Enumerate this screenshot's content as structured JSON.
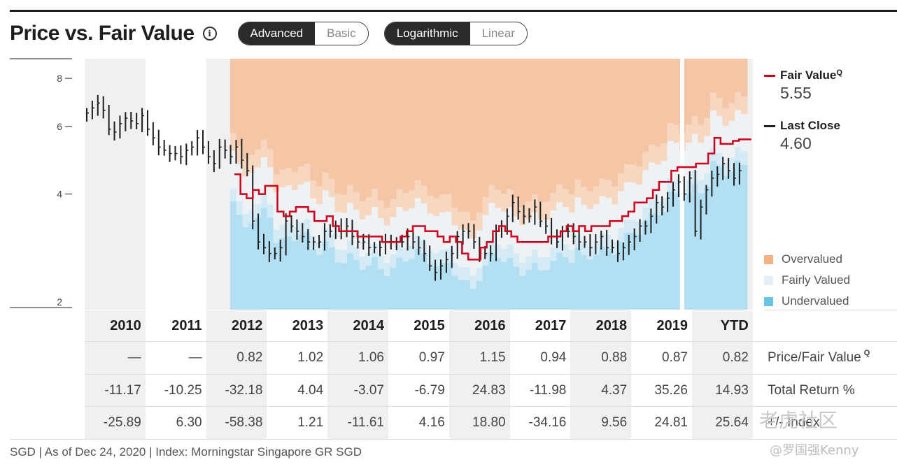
{
  "header": {
    "title": "Price vs. Fair Value",
    "info_glyph": "i",
    "view_toggle": {
      "options": [
        "Advanced",
        "Basic"
      ],
      "selected": "Advanced"
    },
    "scale_toggle": {
      "options": [
        "Logarithmic",
        "Linear"
      ],
      "selected": "Logarithmic"
    }
  },
  "legend": {
    "fair_value_label": "Fair Value",
    "fair_value_value": "5.55",
    "last_close_label": "Last Close",
    "last_close_value": "4.60",
    "q_glyph": "Q",
    "fair_value_color": "#d0021b",
    "last_close_color": "#1e1e1e"
  },
  "band_legend": [
    {
      "label": "Overvalued",
      "color": "#f5b184"
    },
    {
      "label": "Fairly Valued",
      "color": "#e3eef5"
    },
    {
      "label": "Undervalued",
      "color": "#67c4e7"
    }
  ],
  "table": {
    "years": [
      "2010",
      "2011",
      "2012",
      "2013",
      "2014",
      "2015",
      "2016",
      "2017",
      "2018",
      "2019",
      "YTD"
    ],
    "rows": [
      {
        "label": "Price/Fair Value",
        "has_q": true,
        "values": [
          "—",
          "—",
          "0.82",
          "1.02",
          "1.06",
          "0.97",
          "1.15",
          "0.94",
          "0.88",
          "0.87",
          "0.82"
        ]
      },
      {
        "label": "Total Return %",
        "has_q": false,
        "values": [
          "-11.17",
          "-10.25",
          "-32.18",
          "4.04",
          "-3.07",
          "-6.79",
          "24.83",
          "-11.98",
          "4.37",
          "35.26",
          "14.93"
        ]
      },
      {
        "label": "+/- Index",
        "has_q": false,
        "values": [
          "-25.89",
          "6.30",
          "-58.38",
          "1.21",
          "-11.61",
          "4.16",
          "18.80",
          "-34.16",
          "9.56",
          "24.81",
          "25.64"
        ]
      }
    ]
  },
  "footer": "SGD | As of Dec 24, 2020 | Index: Morningstar Singapore GR SGD",
  "watermark": {
    "line1": "老虎社区",
    "line2": "@罗国强Kenny"
  },
  "chart_data": {
    "type": "line",
    "y_scale": "log",
    "ylim": [
      2,
      9
    ],
    "y_ticks": [
      2,
      4,
      6,
      8
    ],
    "years": [
      "2010",
      "2011",
      "2012",
      "2013",
      "2014",
      "2015",
      "2016",
      "2017",
      "2018",
      "2019",
      "YTD"
    ],
    "fair_value_start_year_index": 2.4,
    "price_monthly": [
      6.5,
      6.7,
      6.9,
      6.6,
      5.9,
      5.8,
      6.1,
      6.3,
      6.2,
      6.1,
      6.4,
      5.9,
      5.6,
      5.3,
      5.2,
      5.1,
      5.1,
      5.0,
      5.2,
      5.3,
      5.6,
      5.3,
      5.0,
      4.8,
      5.3,
      5.2,
      5.0,
      5.3,
      4.9,
      4.6,
      3.4,
      3.0,
      2.9,
      2.8,
      2.8,
      2.9,
      3.4,
      3.3,
      3.2,
      3.1,
      3.0,
      3.0,
      3.0,
      3.2,
      3.2,
      3.3,
      3.2,
      3.3,
      3.1,
      3.0,
      3.0,
      2.9,
      2.9,
      2.9,
      3.0,
      3.0,
      3.0,
      3.0,
      3.1,
      3.0,
      2.9,
      2.8,
      2.6,
      2.5,
      2.6,
      2.7,
      2.8,
      3.1,
      3.2,
      3.2,
      3.0,
      2.8,
      2.8,
      2.8,
      3.2,
      3.3,
      3.5,
      3.8,
      3.6,
      3.5,
      3.5,
      3.7,
      3.4,
      3.3,
      3.1,
      3.0,
      3.2,
      3.2,
      3.1,
      3.0,
      3.0,
      2.9,
      3.0,
      3.1,
      2.9,
      2.9,
      2.8,
      2.9,
      3.0,
      3.1,
      3.3,
      3.3,
      3.5,
      3.8,
      3.7,
      3.9,
      4.1,
      4.3,
      4.0,
      4.4,
      3.2,
      3.7,
      4.1,
      4.4,
      4.5,
      4.8,
      4.6,
      4.4,
      4.6
    ],
    "fair_value_monthly": [
      4.5,
      4.0,
      3.9,
      4.1,
      4.0,
      4.2,
      4.2,
      3.6,
      3.5,
      3.6,
      3.7,
      3.7,
      3.6,
      3.4,
      3.4,
      3.5,
      3.3,
      3.2,
      3.2,
      3.2,
      3.1,
      3.1,
      3.1,
      3.1,
      3.0,
      3.0,
      3.0,
      3.1,
      3.2,
      3.3,
      3.3,
      3.2,
      3.2,
      3.1,
      3.0,
      3.1,
      3.0,
      2.8,
      2.7,
      2.7,
      2.9,
      3.0,
      3.2,
      3.3,
      3.2,
      3.1,
      3.0,
      3.0,
      3.0,
      3.0,
      3.0,
      3.1,
      3.1,
      3.2,
      3.3,
      3.2,
      3.3,
      3.2,
      3.3,
      3.3,
      3.3,
      3.4,
      3.4,
      3.5,
      3.6,
      3.8,
      3.8,
      3.9,
      4.1,
      4.3,
      4.3,
      4.6,
      4.7,
      4.7,
      4.7,
      4.8,
      4.8,
      5.1,
      5.6,
      5.4,
      5.4,
      5.5,
      5.55,
      5.55
    ]
  }
}
